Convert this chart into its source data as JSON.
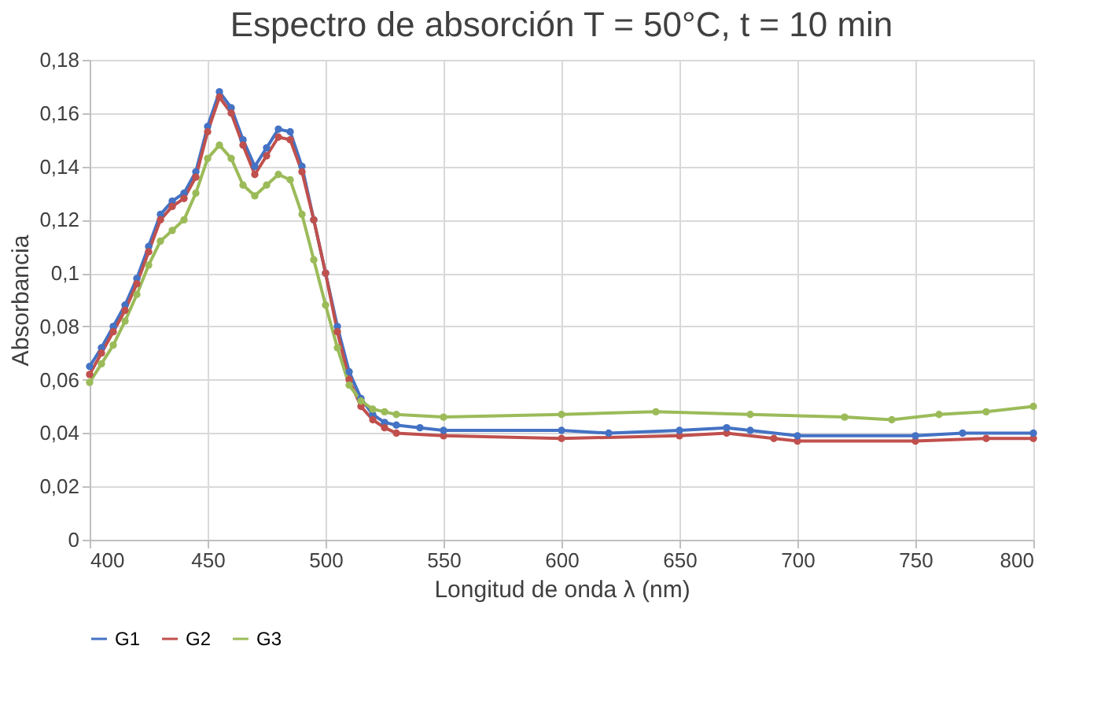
{
  "chart_data": {
    "type": "line",
    "title": "Espectro de absorción T = 50°C, t = 10 min",
    "xlabel": "Longitud de onda λ (nm)",
    "ylabel": "Absorbancia",
    "xlim": [
      400,
      800
    ],
    "xticks": [
      400,
      450,
      500,
      550,
      600,
      650,
      700,
      750,
      800
    ],
    "ylim": [
      0,
      0.18
    ],
    "yticks": [
      {
        "value": 0,
        "label": "0"
      },
      {
        "value": 0.02,
        "label": "0,02"
      },
      {
        "value": 0.04,
        "label": "0,04"
      },
      {
        "value": 0.06,
        "label": "0,06"
      },
      {
        "value": 0.08,
        "label": "0,08"
      },
      {
        "value": 0.1,
        "label": "0,1"
      },
      {
        "value": 0.12,
        "label": "0,12"
      },
      {
        "value": 0.14,
        "label": "0,14"
      },
      {
        "value": 0.16,
        "label": "0,16"
      },
      {
        "value": 0.18,
        "label": "0,18"
      }
    ],
    "grid": true,
    "legend": "bottom",
    "marker": "circle",
    "line_style": "solid",
    "series": [
      {
        "name": "G1",
        "color": "#4472c4",
        "x": [
          400,
          405,
          410,
          415,
          420,
          425,
          430,
          435,
          440,
          445,
          450,
          455,
          460,
          465,
          470,
          475,
          480,
          485,
          490,
          495,
          500,
          505,
          510,
          515,
          520,
          525,
          530,
          540,
          550,
          600,
          620,
          650,
          670,
          680,
          700,
          750,
          770,
          800
        ],
        "values": [
          0.065,
          0.072,
          0.08,
          0.088,
          0.098,
          0.11,
          0.122,
          0.127,
          0.13,
          0.138,
          0.155,
          0.168,
          0.162,
          0.15,
          0.14,
          0.147,
          0.154,
          0.153,
          0.14,
          0.12,
          0.1,
          0.08,
          0.063,
          0.053,
          0.047,
          0.044,
          0.043,
          0.042,
          0.041,
          0.041,
          0.04,
          0.041,
          0.042,
          0.041,
          0.039,
          0.039,
          0.04,
          0.04
        ]
      },
      {
        "name": "G2",
        "color": "#c0504d",
        "x": [
          400,
          405,
          410,
          415,
          420,
          425,
          430,
          435,
          440,
          445,
          450,
          455,
          460,
          465,
          470,
          475,
          480,
          485,
          490,
          495,
          500,
          505,
          510,
          515,
          520,
          525,
          530,
          550,
          600,
          650,
          670,
          690,
          700,
          750,
          780,
          800
        ],
        "values": [
          0.062,
          0.07,
          0.078,
          0.086,
          0.096,
          0.108,
          0.12,
          0.125,
          0.128,
          0.136,
          0.153,
          0.166,
          0.16,
          0.148,
          0.137,
          0.144,
          0.151,
          0.15,
          0.138,
          0.12,
          0.1,
          0.078,
          0.06,
          0.05,
          0.045,
          0.042,
          0.04,
          0.039,
          0.038,
          0.039,
          0.04,
          0.038,
          0.037,
          0.037,
          0.038,
          0.038
        ]
      },
      {
        "name": "G3",
        "color": "#9bbb59",
        "x": [
          400,
          405,
          410,
          415,
          420,
          425,
          430,
          435,
          440,
          445,
          450,
          455,
          460,
          465,
          470,
          475,
          480,
          485,
          490,
          495,
          500,
          505,
          510,
          515,
          520,
          525,
          530,
          550,
          600,
          640,
          680,
          720,
          740,
          760,
          780,
          800
        ],
        "values": [
          0.059,
          0.066,
          0.073,
          0.082,
          0.092,
          0.103,
          0.112,
          0.116,
          0.12,
          0.13,
          0.143,
          0.148,
          0.143,
          0.133,
          0.129,
          0.133,
          0.137,
          0.135,
          0.122,
          0.105,
          0.088,
          0.072,
          0.058,
          0.052,
          0.049,
          0.048,
          0.047,
          0.046,
          0.047,
          0.048,
          0.047,
          0.046,
          0.045,
          0.047,
          0.048,
          0.05
        ]
      }
    ]
  }
}
